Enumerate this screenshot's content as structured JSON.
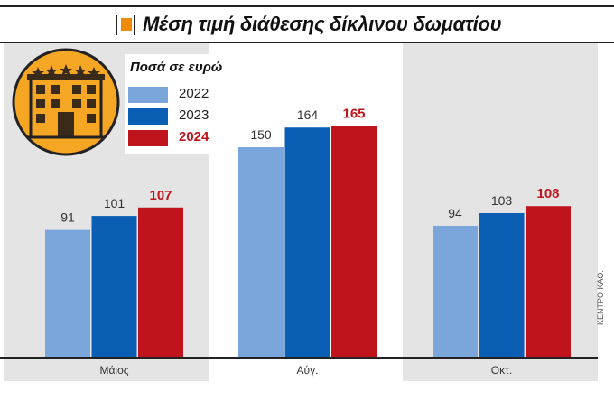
{
  "title": "Μέση τιμή διάθεσης δίκλινου δωματίου",
  "legend": {
    "title": "Ποσά σε ευρώ",
    "items": [
      "2022",
      "2023",
      "2024"
    ]
  },
  "colors": {
    "2022": "#7aa6dc",
    "2023": "#0a5fb4",
    "2024": "#c0141c",
    "panel": "#e4e4e4",
    "badge": "#f5a623"
  },
  "credit": "ΚΕΝΤΡΟ ΚΑΘ.",
  "chart_data": {
    "type": "bar",
    "categories": [
      "Μάιος",
      "Αύγ.",
      "Οκτ."
    ],
    "series": [
      {
        "name": "2022",
        "values": [
          91,
          150,
          94
        ]
      },
      {
        "name": "2023",
        "values": [
          101,
          164,
          103
        ]
      },
      {
        "name": "2024",
        "values": [
          107,
          165,
          108
        ]
      }
    ],
    "ylim": [
      0,
      200
    ],
    "highlight_series": "2024",
    "grid": false,
    "legend_position": "top-left"
  }
}
